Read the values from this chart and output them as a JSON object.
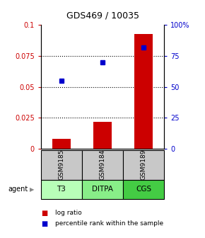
{
  "title": "GDS469 / 10035",
  "categories": [
    "GSM9185",
    "GSM9184",
    "GSM9189"
  ],
  "agents": [
    "T3",
    "DITPA",
    "CGS"
  ],
  "log_ratios": [
    0.008,
    0.022,
    0.093
  ],
  "percentile_ranks": [
    55,
    70,
    82
  ],
  "bar_color": "#cc0000",
  "dot_color": "#0000cc",
  "left_ylim": [
    0,
    0.1
  ],
  "right_ylim": [
    0,
    100
  ],
  "left_yticks": [
    0,
    0.025,
    0.05,
    0.075,
    0.1
  ],
  "right_yticks": [
    0,
    25,
    50,
    75,
    100
  ],
  "left_yticklabels": [
    "0",
    "0.025",
    "0.05",
    "0.075",
    "0.1"
  ],
  "right_yticklabels": [
    "0",
    "25",
    "50",
    "75",
    "100%"
  ],
  "gsm_box_color": "#c8c8c8",
  "agent_colors": [
    "#b8ffb8",
    "#88ee88",
    "#44cc44"
  ],
  "legend_bar_label": "log ratio",
  "legend_dot_label": "percentile rank within the sample",
  "background_color": "#ffffff"
}
